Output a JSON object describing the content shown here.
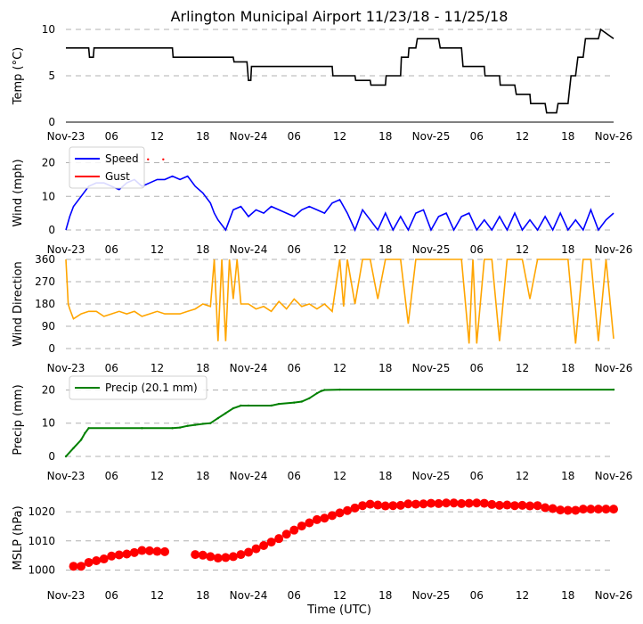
{
  "figure": {
    "title": "Arlington Municipal Airport 11/23/18 - 11/25/18",
    "xlabel": "Time (UTC)"
  },
  "x_ticks": [
    "Nov-23",
    "06",
    "12",
    "18",
    "Nov-24",
    "06",
    "12",
    "18",
    "Nov-25",
    "06",
    "12",
    "18",
    "Nov-26"
  ],
  "chart_data": [
    {
      "type": "line",
      "ylabel": "Temp ($^\\circ$C)",
      "ylabel_display": "Temp (°C)",
      "ylim": [
        0,
        10
      ],
      "yticks": [
        0,
        5,
        10
      ],
      "grid": true,
      "x_hours": [
        0,
        3,
        3.1,
        3.6,
        3.7,
        14,
        14.1,
        22,
        22.1,
        23.8,
        24,
        24.3,
        24.4,
        35,
        35.1,
        38,
        38.1,
        40,
        40.1,
        42,
        42.1,
        44,
        44.1,
        45,
        45.1,
        46,
        46.2,
        49,
        49.2,
        52,
        52.2,
        55,
        55.1,
        57,
        57.1,
        59,
        59.2,
        61,
        61.1,
        63,
        63.2,
        64.5,
        64.7,
        66,
        66.4,
        67,
        67.3,
        68,
        68.3,
        70,
        70.3,
        72
      ],
      "series": [
        {
          "name": "Temp",
          "color": "#000000",
          "values": [
            8,
            8,
            7,
            7,
            8,
            8,
            7,
            7,
            6.5,
            6.5,
            4.5,
            4.5,
            6,
            6,
            5,
            5,
            4.5,
            4.5,
            4,
            4,
            5,
            5,
            7,
            7,
            8,
            8,
            9,
            9,
            8,
            8,
            6,
            6,
            5,
            5,
            4,
            4,
            3,
            3,
            2,
            2,
            1,
            1,
            2,
            2,
            5,
            5,
            7,
            7,
            9,
            9,
            10,
            9
          ]
        }
      ]
    },
    {
      "type": "line",
      "ylabel": "Wind (mph)",
      "ylim": [
        0,
        22
      ],
      "yticks": [
        0,
        10,
        20
      ],
      "grid": true,
      "legend_position": "top-left",
      "x_hours": [
        0,
        0.5,
        1,
        2,
        3,
        4,
        5,
        6,
        7,
        8,
        9,
        10,
        11,
        12,
        13,
        14,
        15,
        16,
        17,
        18,
        19,
        19.5,
        20,
        21,
        22,
        23,
        24,
        25,
        26,
        27,
        28,
        29,
        30,
        31,
        32,
        33,
        34,
        35,
        36,
        37,
        38,
        39,
        40,
        41,
        42,
        43,
        44,
        45,
        46,
        47,
        48,
        49,
        50,
        51,
        52,
        53,
        54,
        55,
        56,
        57,
        58,
        59,
        60,
        61,
        62,
        63,
        64,
        65,
        66,
        67,
        68,
        69,
        70,
        71,
        72
      ],
      "series": [
        {
          "name": "Speed",
          "color": "#0000ff",
          "values": [
            0,
            4,
            7,
            10,
            13,
            14,
            14,
            13,
            12,
            14,
            15,
            13,
            14,
            15,
            15,
            16,
            15,
            16,
            13,
            11,
            8,
            5,
            3,
            0,
            6,
            7,
            4,
            6,
            5,
            7,
            6,
            5,
            4,
            6,
            7,
            6,
            5,
            8,
            9,
            5,
            0,
            6,
            3,
            0,
            5,
            0,
            4,
            0,
            5,
            6,
            0,
            4,
            5,
            0,
            4,
            5,
            0,
            3,
            0,
            4,
            0,
            5,
            0,
            3,
            0,
            4,
            0,
            5,
            0,
            3,
            0,
            6,
            0,
            3,
            5
          ]
        },
        {
          "name": "Gust",
          "color": "#ff0000",
          "x_points": [
            10.8,
            12.8
          ],
          "values": [
            21,
            21
          ]
        }
      ]
    },
    {
      "type": "line",
      "ylabel": "Wind Direction",
      "ylim": [
        0,
        360
      ],
      "yticks": [
        0,
        90,
        180,
        270,
        360
      ],
      "grid": true,
      "x_hours": [
        0,
        0.3,
        0.5,
        1,
        2,
        3,
        4,
        5,
        6,
        7,
        8,
        9,
        10,
        11,
        12,
        13,
        14,
        15,
        16,
        17,
        18,
        19,
        19.5,
        20,
        20.5,
        21,
        21.5,
        22,
        22.5,
        23,
        24,
        25,
        26,
        27,
        28,
        29,
        30,
        31,
        32,
        33,
        34,
        35,
        36,
        36.5,
        37,
        38,
        39,
        40,
        41,
        42,
        43,
        44,
        45,
        46,
        47,
        48,
        49,
        50,
        51,
        52,
        53,
        53.5,
        54,
        55,
        56,
        57,
        58,
        59,
        60,
        61,
        62,
        63,
        64,
        65,
        66,
        67,
        68,
        69,
        70,
        71,
        72
      ],
      "series": [
        {
          "name": "Direction",
          "color": "#ffa500",
          "values": [
            360,
            180,
            160,
            120,
            140,
            150,
            150,
            130,
            140,
            150,
            140,
            150,
            130,
            140,
            150,
            140,
            140,
            140,
            150,
            160,
            180,
            170,
            360,
            30,
            360,
            30,
            360,
            200,
            360,
            180,
            180,
            160,
            170,
            150,
            190,
            160,
            200,
            170,
            180,
            160,
            180,
            150,
            360,
            170,
            360,
            180,
            360,
            360,
            200,
            360,
            360,
            360,
            100,
            360,
            360,
            360,
            360,
            360,
            360,
            360,
            20,
            360,
            20,
            360,
            360,
            30,
            360,
            360,
            360,
            200,
            360,
            360,
            360,
            360,
            360,
            20,
            360,
            360,
            30,
            360,
            40
          ]
        }
      ]
    },
    {
      "type": "line",
      "ylabel": "Precip (mm)",
      "ylim": [
        0,
        22
      ],
      "yticks": [
        0,
        10,
        20
      ],
      "grid": true,
      "legend_position": "top-left",
      "x_hours": [
        0,
        1,
        2,
        2.5,
        3,
        10,
        14,
        15,
        16,
        17,
        18,
        19,
        20,
        21,
        22,
        23,
        24,
        27,
        28,
        30,
        31,
        32,
        33,
        33.5,
        34,
        36,
        72
      ],
      "series": [
        {
          "name": "Precip (20.1 mm)",
          "color": "#008000",
          "values": [
            0,
            2.5,
            5,
            7,
            8.5,
            8.5,
            8.5,
            8.7,
            9.2,
            9.5,
            9.8,
            10,
            11.5,
            13,
            14.5,
            15.3,
            15.3,
            15.3,
            15.8,
            16.2,
            16.5,
            17.5,
            19,
            19.6,
            20,
            20.1,
            20.1
          ]
        }
      ]
    },
    {
      "type": "scatter",
      "ylabel": "MSLP (hPa)",
      "ylim": [
        998,
        1024
      ],
      "yticks": [
        1000,
        1010,
        1020
      ],
      "grid": true,
      "x_hours": [
        1,
        2,
        3,
        4,
        5,
        6,
        7,
        8,
        9,
        10,
        11,
        12,
        13,
        17,
        18,
        19,
        20,
        21,
        22,
        23,
        24,
        25,
        26,
        27,
        28,
        29,
        30,
        31,
        32,
        33,
        34,
        35,
        36,
        37,
        38,
        39,
        40,
        41,
        42,
        43,
        44,
        45,
        46,
        47,
        48,
        49,
        50,
        51,
        52,
        53,
        54,
        55,
        56,
        57,
        58,
        59,
        60,
        61,
        62,
        63,
        64,
        65,
        66,
        67,
        68,
        69,
        70,
        71,
        72
      ],
      "series": [
        {
          "name": "MSLP",
          "color": "#ff0000",
          "values": [
            1001.3,
            1001.3,
            1002.6,
            1003.2,
            1003.8,
            1004.8,
            1005.2,
            1005.5,
            1006.0,
            1006.7,
            1006.6,
            1006.4,
            1006.3,
            1005.3,
            1005.1,
            1004.6,
            1004.1,
            1004.3,
            1004.6,
            1005.3,
            1006.1,
            1007.3,
            1008.4,
            1009.6,
            1010.8,
            1012.3,
            1013.7,
            1015.1,
            1016.2,
            1017.3,
            1017.8,
            1018.7,
            1019.6,
            1020.4,
            1021.3,
            1022.1,
            1022.6,
            1022.3,
            1022.0,
            1022.1,
            1022.2,
            1022.7,
            1022.6,
            1022.7,
            1022.9,
            1022.8,
            1023.0,
            1023.0,
            1022.8,
            1022.9,
            1023.0,
            1022.9,
            1022.5,
            1022.2,
            1022.3,
            1022.1,
            1022.2,
            1022.0,
            1022.1,
            1021.4,
            1021.1,
            1020.6,
            1020.5,
            1020.5,
            1020.9,
            1020.9,
            1020.9,
            1020.9,
            1020.9
          ]
        }
      ]
    }
  ]
}
